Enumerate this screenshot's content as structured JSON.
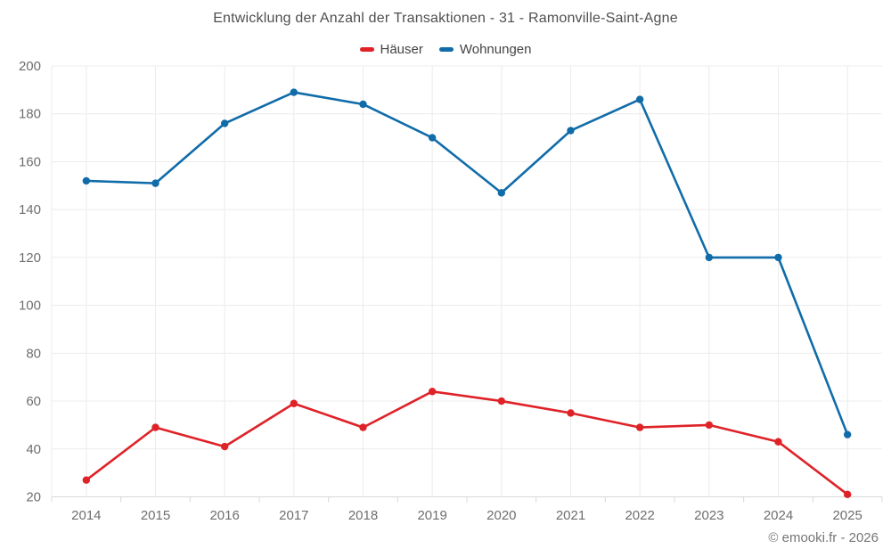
{
  "page": {
    "footer": "© emooki.fr - 2026"
  },
  "legend": [
    {
      "label": "Häuser",
      "color": "#df2228"
    },
    {
      "label": "Wohnungen",
      "color": "#106ca9"
    }
  ],
  "chart_data": {
    "type": "line",
    "title": "Entwicklung der Anzahl der Transaktionen - 31 - Ramonville-Saint-Agne",
    "categories": [
      "2014",
      "2015",
      "2016",
      "2017",
      "2018",
      "2019",
      "2020",
      "2021",
      "2022",
      "2023",
      "2024",
      "2025"
    ],
    "series": [
      {
        "name": "Häuser",
        "color": "#df2228",
        "values": [
          27,
          49,
          41,
          59,
          49,
          64,
          60,
          55,
          49,
          50,
          43,
          21
        ]
      },
      {
        "name": "Wohnungen",
        "color": "#106ca9",
        "values": [
          152,
          151,
          176,
          189,
          184,
          170,
          147,
          173,
          186,
          120,
          120,
          46
        ]
      }
    ],
    "ylim": [
      20,
      200
    ],
    "yticks": [
      20,
      40,
      60,
      80,
      100,
      120,
      140,
      160,
      180,
      200
    ],
    "xlabel": "",
    "ylabel": "",
    "grid": true,
    "legend_position": "top"
  }
}
